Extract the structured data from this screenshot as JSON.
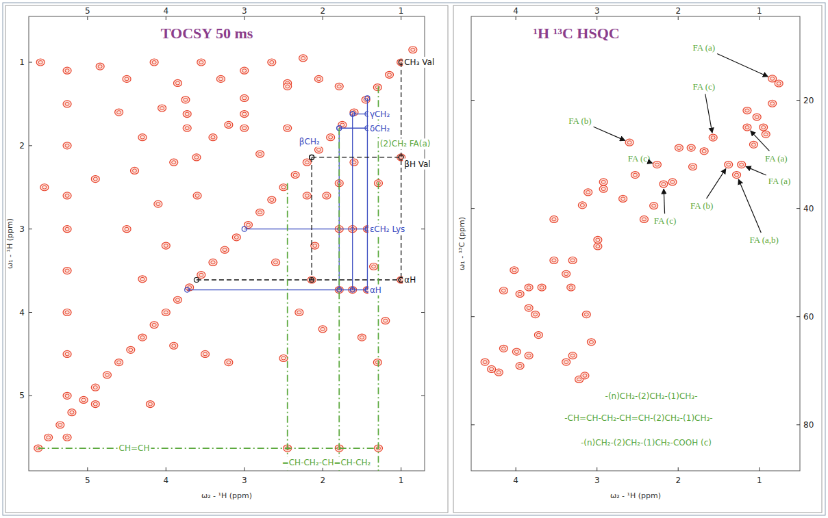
{
  "chart_data": [
    {
      "type": "scatter",
      "title": "TOCSY 50 ms",
      "x_label": "ω₂ - ¹H (ppm)",
      "y_label": "ω₁ - ¹H (ppm)",
      "xlim": [
        5.75,
        0.7
      ],
      "ylim": [
        0.45,
        5.9
      ],
      "xticks": [
        5,
        4,
        3,
        2,
        1
      ],
      "yticks": [
        1,
        2,
        3,
        4,
        5
      ],
      "grid": false,
      "series": [
        {
          "type": "scatter",
          "marker": "contour",
          "color": "#e8432c",
          "x": [
            0.85,
            1.0,
            1.15,
            1.3,
            1.45,
            1.6,
            1.75,
            1.9,
            2.05,
            2.2,
            2.35,
            2.5,
            2.65,
            2.8,
            2.95,
            3.1,
            3.25,
            3.4,
            3.55,
            3.7,
            3.85,
            4.0,
            4.15,
            4.3,
            4.45,
            4.6,
            4.75,
            4.9,
            5.05,
            5.2,
            5.35,
            5.5,
            5.63,
            4.84,
            4.5,
            4.15,
            3.85,
            3.55,
            3.3,
            3.0,
            2.65,
            2.45,
            2.25,
            2.05,
            4.6,
            4.3,
            4.05,
            3.75,
            3.73,
            3.73,
            3.61,
            3.4,
            3.2,
            3.0,
            3.0,
            3.0,
            2.8,
            2.45,
            2.45,
            2.2,
            4.9,
            4.4,
            4.1,
            3.9,
            3.6,
            1.79,
            1.29,
            1.79,
            1.29,
            1.43,
            1.62,
            1.79,
            1.43,
            1.62,
            1.79,
            2.14,
            1.0,
            1.0,
            1.35,
            1.2,
            1.5,
            2.0,
            2.3,
            2.6,
            2.1,
            1.6,
            1.95,
            1.3,
            2.5,
            2.45,
            1.79,
            1.29,
            3.2,
            3.5,
            3.9,
            4.3,
            4.0,
            4.5,
            5.26,
            5.26,
            5.26,
            5.26,
            5.26,
            5.26,
            5.26,
            5.26,
            5.26,
            5.26,
            5.55,
            5.6,
            4.2,
            4.9
          ],
          "values": [
            0.85,
            1.0,
            1.15,
            1.3,
            1.45,
            1.6,
            1.75,
            1.9,
            2.05,
            2.2,
            2.35,
            2.5,
            2.65,
            2.8,
            2.95,
            3.1,
            3.25,
            3.4,
            3.55,
            3.7,
            3.85,
            4.0,
            4.15,
            4.3,
            4.45,
            4.6,
            4.75,
            4.9,
            5.05,
            5.2,
            5.35,
            5.5,
            5.63,
            1.05,
            1.2,
            1.0,
            1.25,
            1.0,
            1.2,
            1.1,
            1.0,
            1.25,
            0.95,
            1.2,
            1.6,
            1.9,
            1.55,
            1.45,
            1.62,
            1.79,
            2.14,
            1.9,
            1.75,
            1.43,
            1.62,
            1.79,
            2.1,
            1.79,
            1.29,
            2.6,
            2.4,
            2.3,
            2.7,
            2.2,
            2.6,
            2.45,
            2.45,
            1.29,
            1.79,
            3.0,
            3.0,
            3.0,
            3.73,
            3.73,
            3.73,
            3.61,
            3.61,
            2.14,
            3.45,
            4.1,
            4.3,
            4.2,
            4.0,
            3.4,
            3.2,
            2.2,
            2.6,
            4.6,
            4.55,
            5.63,
            5.63,
            5.63,
            4.6,
            4.5,
            4.4,
            3.6,
            3.2,
            3.0,
            1.1,
            1.5,
            2.0,
            2.6,
            3.0,
            3.5,
            4.0,
            4.5,
            5.0,
            5.5,
            2.5,
            1.0,
            5.1,
            5.1
          ]
        },
        {
          "type": "line",
          "color": "#3b4cc0",
          "line_style": "solid",
          "marker": "circle",
          "x": [
            3.73,
            1.43
          ],
          "values": [
            3.73,
            3.73
          ]
        },
        {
          "type": "line",
          "color": "#3b4cc0",
          "line_style": "solid",
          "marker": "circle",
          "x": [
            1.79,
            1.79
          ],
          "values": [
            1.79,
            3.73
          ]
        },
        {
          "type": "line",
          "color": "#3b4cc0",
          "line_style": "solid",
          "marker": "circle",
          "x": [
            1.62,
            1.62
          ],
          "values": [
            1.62,
            3.73
          ]
        },
        {
          "type": "line",
          "color": "#3b4cc0",
          "line_style": "solid",
          "marker": "circle",
          "x": [
            1.43,
            1.43
          ],
          "values": [
            1.43,
            3.73
          ]
        },
        {
          "type": "line",
          "color": "#3b4cc0",
          "line_style": "solid",
          "marker": "circle",
          "x": [
            3.0,
            1.43
          ],
          "values": [
            3.0,
            3.0
          ]
        },
        {
          "type": "line",
          "color": "#3b4cc0",
          "line_style": "solid",
          "marker": "circle",
          "x": [
            1.79,
            1.43
          ],
          "values": [
            1.79,
            1.79
          ]
        },
        {
          "type": "line",
          "color": "#3b4cc0",
          "line_style": "solid",
          "marker": "circle",
          "x": [
            1.62,
            1.43
          ],
          "values": [
            1.62,
            1.62
          ]
        },
        {
          "type": "line",
          "color": "#111111",
          "line_style": "dashed",
          "marker": "circle",
          "x": [
            3.61,
            1.0
          ],
          "values": [
            3.61,
            3.61
          ]
        },
        {
          "type": "line",
          "color": "#111111",
          "line_style": "dashed",
          "marker": "circle",
          "x": [
            2.14,
            2.14
          ],
          "values": [
            2.14,
            3.61
          ]
        },
        {
          "type": "line",
          "color": "#111111",
          "line_style": "dashed",
          "marker": "circle",
          "x": [
            2.14,
            1.0
          ],
          "values": [
            2.14,
            2.14
          ]
        },
        {
          "type": "line",
          "color": "#111111",
          "line_style": "dashed",
          "marker": "circle",
          "x": [
            1.0,
            1.0
          ],
          "values": [
            1.0,
            3.61
          ]
        },
        {
          "type": "line",
          "color": "#5aa83c",
          "line_style": "dashdot",
          "marker": "none",
          "x": [
            5.63,
            1.29
          ],
          "values": [
            5.63,
            5.63
          ]
        },
        {
          "type": "line",
          "color": "#5aa83c",
          "line_style": "dashdot",
          "marker": "none",
          "x": [
            2.45,
            2.45
          ],
          "values": [
            2.45,
            5.9
          ]
        },
        {
          "type": "line",
          "color": "#5aa83c",
          "line_style": "dashdot",
          "marker": "none",
          "x": [
            1.79,
            1.79
          ],
          "values": [
            1.79,
            5.9
          ]
        },
        {
          "type": "line",
          "color": "#5aa83c",
          "line_style": "dashdot",
          "marker": "none",
          "x": [
            1.29,
            1.29
          ],
          "values": [
            1.29,
            5.9
          ]
        }
      ],
      "annotations": [
        {
          "text": "CH₃ Val",
          "x": 0.96,
          "y": 1.0,
          "color": "#111111"
        },
        {
          "text": "βH Val",
          "x": 0.96,
          "y": 2.22,
          "color": "#111111"
        },
        {
          "text": "αH",
          "x": 0.96,
          "y": 3.61,
          "color": "#111111"
        },
        {
          "text": "γCH₂",
          "x": 1.4,
          "y": 1.62,
          "color": "#3b4cc0"
        },
        {
          "text": "δCH₂",
          "x": 1.4,
          "y": 1.8,
          "color": "#3b4cc0"
        },
        {
          "text": "βCH₂",
          "x": 2.3,
          "y": 1.95,
          "color": "#3b4cc0"
        },
        {
          "text": "εCH₂ Lys",
          "x": 1.4,
          "y": 3.0,
          "color": "#3b4cc0"
        },
        {
          "text": "αH",
          "x": 1.4,
          "y": 3.73,
          "color": "#3b4cc0"
        },
        {
          "text": "(2)CH₂ FA(a)",
          "x": 1.27,
          "y": 1.98,
          "color": "#5aa83c"
        },
        {
          "text": "CH=CH",
          "x": 4.6,
          "y": 5.63,
          "color": "#5aa83c"
        },
        {
          "text": "=CH-CH₂-CH=CH-CH₂",
          "x": 2.52,
          "y": 5.8,
          "color": "#5aa83c"
        }
      ]
    },
    {
      "type": "scatter",
      "title": "¹H ¹³C HSQC",
      "x_label": "ω₂ - ¹H (ppm)",
      "y_label": "ω₁ - ¹³C (ppm)",
      "xlim": [
        4.55,
        0.5
      ],
      "ylim": [
        4.5,
        88.5
      ],
      "xticks": [
        4,
        3,
        2,
        1
      ],
      "yticks": [
        20,
        40,
        60,
        80
      ],
      "grid": false,
      "series": [
        {
          "type": "scatter",
          "marker": "contour",
          "color": "#e8432c",
          "x": [
            0.84,
            1.57,
            2.6,
            1.15,
            1.82,
            1.22,
            1.38,
            2.18,
            1.28,
            1.15,
            1.03,
            0.95,
            0.92,
            1.07,
            0.84,
            0.76,
            1.84,
            1.68,
            1.99,
            2.26,
            2.07,
            2.53,
            2.68,
            2.92,
            2.92,
            3.11,
            3.18,
            3.3,
            3.32,
            4.02,
            4.15,
            3.95,
            3.84,
            3.84,
            3.72,
            3.84,
            3.99,
            3.95,
            4.15,
            4.21,
            4.38,
            4.3,
            3.22,
            3.15,
            3.38,
            3.68,
            3.76,
            3.3,
            3.13,
            3.53,
            3.38,
            2.3,
            2.42,
            2.99,
            2.99,
            3.07,
            3.53
          ],
          "values": [
            16.0,
            26.9,
            27.8,
            25.0,
            32.3,
            31.9,
            31.9,
            35.5,
            33.8,
            21.9,
            23.1,
            25.0,
            26.3,
            28.2,
            20.6,
            16.9,
            28.8,
            29.4,
            28.8,
            31.9,
            35.1,
            33.8,
            38.2,
            35.1,
            36.4,
            37.0,
            39.4,
            49.6,
            54.6,
            51.4,
            55.2,
            55.8,
            54.6,
            58.4,
            63.4,
            67.2,
            66.5,
            69.1,
            65.9,
            70.3,
            68.4,
            69.7,
            71.6,
            70.9,
            68.4,
            54.6,
            59.6,
            67.2,
            59.6,
            49.6,
            52.1,
            39.5,
            42.0,
            47.0,
            45.8,
            64.7,
            42.0
          ]
        }
      ],
      "annotations": [
        {
          "text": "FA (a)",
          "x": 1.82,
          "y": 10.3,
          "color": "#5aa83c",
          "target": {
            "x": 0.84,
            "y": 16.0
          }
        },
        {
          "text": "FA (c)",
          "x": 1.82,
          "y": 17.5,
          "color": "#5aa83c",
          "target": {
            "x": 1.57,
            "y": 26.9
          }
        },
        {
          "text": "FA (b)",
          "x": 3.35,
          "y": 23.8,
          "color": "#5aa83c",
          "target": {
            "x": 2.6,
            "y": 27.8
          }
        },
        {
          "text": "FA (a)",
          "x": 0.93,
          "y": 30.7,
          "color": "#5aa83c",
          "target": {
            "x": 1.15,
            "y": 25.0
          }
        },
        {
          "text": "FA (c)",
          "x": 2.62,
          "y": 30.8,
          "color": "#5aa83c",
          "target": {
            "x": 2.26,
            "y": 31.9
          }
        },
        {
          "text": "FA (a)",
          "x": 0.89,
          "y": 34.9,
          "color": "#5aa83c",
          "target": {
            "x": 1.22,
            "y": 31.9
          }
        },
        {
          "text": "FA (b)",
          "x": 1.85,
          "y": 39.5,
          "color": "#5aa83c",
          "target": {
            "x": 1.38,
            "y": 31.9
          }
        },
        {
          "text": "FA (c)",
          "x": 2.3,
          "y": 42.3,
          "color": "#5aa83c",
          "target": {
            "x": 2.18,
            "y": 35.5
          }
        },
        {
          "text": "FA (a,b)",
          "x": 1.12,
          "y": 45.8,
          "color": "#5aa83c",
          "target": {
            "x": 1.28,
            "y": 33.8
          }
        },
        {
          "text": "-(n)CH₂-(2)CH₂-(1)CH₃-",
          "x": 2.9,
          "y": 74.7,
          "color": "#5aa83c"
        },
        {
          "text": "-CH=CH-CH₂-CH=CH-(2)CH₂-(1)CH₃-",
          "x": 3.4,
          "y": 78.7,
          "color": "#5aa83c"
        },
        {
          "text": "-(n)CH₂-(2)CH₂-(1)CH₂-COOH (c)",
          "x": 3.2,
          "y": 83.3,
          "color": "#5aa83c"
        }
      ]
    }
  ]
}
